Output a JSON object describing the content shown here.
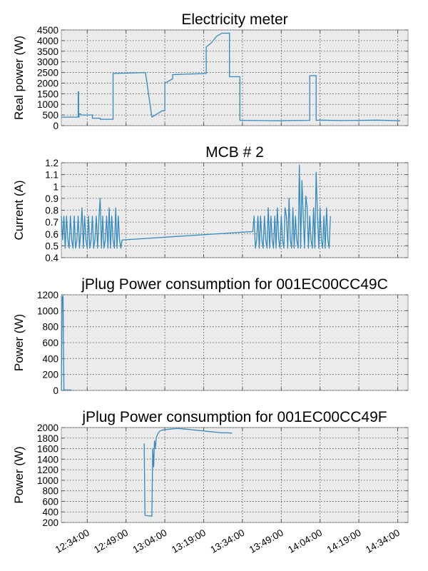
{
  "colors": {
    "series": "#348abd",
    "plot_bg": "#ebebeb",
    "frame": "#999999"
  },
  "chart_data": [
    {
      "type": "line",
      "title": "Electricity meter",
      "ylabel": "Real power (W)",
      "xlabel": "",
      "grid": true,
      "ylim": [
        0,
        4500
      ],
      "yticks": [
        0,
        500,
        1000,
        1500,
        2000,
        2500,
        3000,
        3500,
        4000,
        4500
      ],
      "series": [
        {
          "x": [
            "12:24:00",
            "12:30:30",
            "12:30:30",
            "12:30:40",
            "12:30:40",
            "12:30:50",
            "12:30:50",
            "12:31:30",
            "12:31:30",
            "12:36:00",
            "12:36:00",
            "12:39:00",
            "12:39:00",
            "12:44:00",
            "12:44:00",
            "12:56:30",
            "12:56:30",
            "12:59:00",
            "12:59:00",
            "13:03:00",
            "13:03:00",
            "13:04:00",
            "13:04:00",
            "13:07:00",
            "13:07:00",
            "13:20:00",
            "13:20:00",
            "13:22:00",
            "13:24:00",
            "13:26:00",
            "13:29:00",
            "13:29:00",
            "13:33:00",
            "13:33:00",
            "13:34:00",
            "13:47:00",
            "14:00:00",
            "14:00:00",
            "14:02:30",
            "14:02:30",
            "14:04:00",
            "14:12:00",
            "14:20:00",
            "14:26:00",
            "14:35:00"
          ],
          "y": [
            400,
            400,
            1600,
            1600,
            400,
            400,
            550,
            550,
            500,
            500,
            350,
            350,
            300,
            300,
            2450,
            2500,
            2500,
            400,
            400,
            700,
            700,
            700,
            2000,
            2200,
            2400,
            2450,
            3700,
            3900,
            4200,
            4350,
            4350,
            2300,
            2300,
            250,
            250,
            230,
            250,
            2350,
            2350,
            250,
            260,
            240,
            250,
            260,
            230
          ]
        }
      ]
    },
    {
      "type": "line",
      "title": "MCB # 2",
      "ylabel": "Current (A)",
      "xlabel": "",
      "grid": true,
      "ylim": [
        0.4,
        1.2
      ],
      "yticks": [
        0.4,
        0.5,
        0.6,
        0.7,
        0.8,
        0.9,
        1.0,
        1.1,
        1.2
      ],
      "series": [
        {
          "x": [
            "12:24:00",
            "12:24:30",
            "12:25:00",
            "12:25:30",
            "12:26:00",
            "12:26:30",
            "12:27:00",
            "12:27:30",
            "12:28:00",
            "12:28:30",
            "12:29:00",
            "12:29:30",
            "12:30:00",
            "12:30:30",
            "12:31:00",
            "12:31:30",
            "12:32:00",
            "12:32:30",
            "12:33:00",
            "12:33:30",
            "12:34:00",
            "12:34:30",
            "12:35:00",
            "12:35:30",
            "12:36:00",
            "12:36:30",
            "12:37:00",
            "12:37:30",
            "12:38:00",
            "12:38:30",
            "12:39:00",
            "12:39:30",
            "12:40:00",
            "12:40:30",
            "12:41:00",
            "12:41:30",
            "12:42:00",
            "12:42:30",
            "12:43:00",
            "12:43:30",
            "12:44:00",
            "12:44:30",
            "12:45:00",
            "12:45:30",
            "12:46:00",
            "12:46:30",
            "12:47:00",
            "12:47:30",
            "12:48:00",
            "13:38:00",
            "13:38:30",
            "13:39:00",
            "13:39:30",
            "13:40:00",
            "13:40:30",
            "13:41:00",
            "13:41:30",
            "13:42:00",
            "13:42:30",
            "13:43:00",
            "13:43:30",
            "13:44:00",
            "13:44:30",
            "13:45:00",
            "13:45:30",
            "13:46:00",
            "13:46:30",
            "13:47:00",
            "13:47:30",
            "13:48:00",
            "13:48:30",
            "13:49:00",
            "13:49:30",
            "13:50:00",
            "13:50:30",
            "13:51:00",
            "13:51:30",
            "13:52:00",
            "13:52:30",
            "13:53:00",
            "13:53:30",
            "13:54:00",
            "13:54:30",
            "13:55:00",
            "13:55:30",
            "13:56:00",
            "13:56:30",
            "13:57:00",
            "13:57:30",
            "13:58:00",
            "13:58:30",
            "13:59:00",
            "13:59:30",
            "14:00:00",
            "14:00:30",
            "14:01:00",
            "14:01:30",
            "14:02:00",
            "14:02:30",
            "14:03:00",
            "14:03:30",
            "14:04:00",
            "14:04:30",
            "14:05:00",
            "14:05:30",
            "14:06:00",
            "14:06:30",
            "14:07:00",
            "14:07:30",
            "14:08:00"
          ],
          "y": [
            0.75,
            0.55,
            0.75,
            0.48,
            0.75,
            0.55,
            0.48,
            0.75,
            0.55,
            0.48,
            0.75,
            0.48,
            0.55,
            0.75,
            0.48,
            0.62,
            0.82,
            0.48,
            0.75,
            0.55,
            0.48,
            0.75,
            0.48,
            0.55,
            0.75,
            0.48,
            0.55,
            0.75,
            0.48,
            0.72,
            0.9,
            0.48,
            0.75,
            0.48,
            0.55,
            0.75,
            0.48,
            0.82,
            0.48,
            0.75,
            0.55,
            0.48,
            0.82,
            0.48,
            0.75,
            0.55,
            0.48,
            0.55,
            0.55,
            0.62,
            0.75,
            0.48,
            0.55,
            0.75,
            0.48,
            0.75,
            0.55,
            0.48,
            0.75,
            0.55,
            0.48,
            0.82,
            0.48,
            0.75,
            0.55,
            0.48,
            0.75,
            0.48,
            0.82,
            0.55,
            0.48,
            0.75,
            0.55,
            0.48,
            0.82,
            0.75,
            0.48,
            0.9,
            0.55,
            0.48,
            0.82,
            0.48,
            0.75,
            0.55,
            0.48,
            1.18,
            0.48,
            1.05,
            0.75,
            0.48,
            0.92,
            0.82,
            0.48,
            0.75,
            0.55,
            0.48,
            0.82,
            0.48,
            1.12,
            0.75,
            0.48,
            0.82,
            0.55,
            0.48,
            0.75,
            0.48,
            0.82,
            0.55,
            0.48,
            0.75
          ]
        }
      ]
    },
    {
      "type": "line",
      "title": "jPlug Power consumption for 001EC00CC49C",
      "ylabel": "Power (W)",
      "xlabel": "",
      "grid": true,
      "ylim": [
        0,
        1200
      ],
      "yticks": [
        0,
        200,
        400,
        600,
        800,
        1000,
        1200
      ],
      "series": [
        {
          "x": [
            "12:24:00",
            "12:24:20",
            "12:24:40",
            "12:25:00",
            "12:28:00"
          ],
          "y": [
            0,
            1180,
            1180,
            5,
            5
          ]
        }
      ]
    },
    {
      "type": "line",
      "title": "jPlug Power consumption for 001EC00CC49F",
      "ylabel": "Power (W)",
      "xlabel": "",
      "grid": true,
      "ylim": [
        200,
        2000
      ],
      "yticks": [
        200,
        400,
        600,
        800,
        1000,
        1200,
        1400,
        1600,
        1800,
        2000
      ],
      "series": [
        {
          "x": [
            "12:56:00",
            "12:56:20",
            "12:56:40",
            "12:59:00",
            "12:59:20",
            "12:59:40",
            "13:00:00",
            "13:00:20",
            "13:00:40",
            "13:01:00",
            "13:01:30",
            "13:02:00",
            "13:03:00",
            "13:04:00",
            "13:06:00",
            "13:08:00",
            "13:10:00",
            "13:12:00",
            "13:14:00",
            "13:16:00",
            "13:18:00",
            "13:20:00",
            "13:22:00",
            "13:24:00",
            "13:26:00",
            "13:28:00",
            "13:30:00"
          ],
          "y": [
            1700,
            340,
            330,
            320,
            1600,
            1250,
            1750,
            1600,
            1800,
            1850,
            1900,
            1930,
            1950,
            1960,
            1970,
            1980,
            1980,
            1970,
            1960,
            1950,
            1940,
            1930,
            1920,
            1910,
            1900,
            1900,
            1895
          ]
        }
      ]
    }
  ],
  "x_axis": {
    "range": [
      "12:24:00",
      "14:38:00"
    ],
    "ticks": [
      "12:34:00",
      "12:49:00",
      "13:04:00",
      "13:19:00",
      "13:34:00",
      "13:49:00",
      "14:04:00",
      "14:19:00",
      "14:34:00"
    ],
    "tick_labels": [
      "12:34:00",
      "12:49:00",
      "13:04:00",
      "13:19:00",
      "13:34:00",
      "13:49:00",
      "14:04:00",
      "14:19:00",
      "14:34:00"
    ]
  }
}
